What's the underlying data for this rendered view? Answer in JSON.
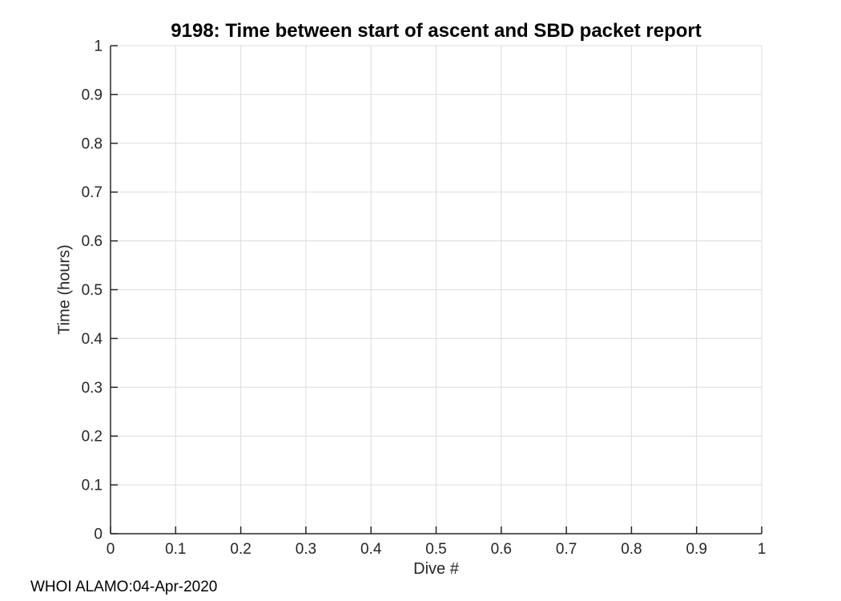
{
  "figure": {
    "background": "#ffffff",
    "annotation": "WHOI ALAMO:04-Apr-2020"
  },
  "chart_data": {
    "type": "line",
    "title": "9198: Time between start of ascent and SBD packet report",
    "xlabel": "Dive #",
    "ylabel": "Time (hours)",
    "xlim": [
      0,
      1
    ],
    "ylim": [
      0,
      1
    ],
    "xticks": {
      "values": [
        0,
        0.1,
        0.2,
        0.3,
        0.4,
        0.5,
        0.6,
        0.7,
        0.8,
        0.9,
        1
      ],
      "labels": [
        "0",
        "0.1",
        "0.2",
        "0.3",
        "0.4",
        "0.5",
        "0.6",
        "0.7",
        "0.8",
        "0.9",
        "1"
      ]
    },
    "yticks": {
      "values": [
        0,
        0.1,
        0.2,
        0.3,
        0.4,
        0.5,
        0.6,
        0.7,
        0.8,
        0.9,
        1
      ],
      "labels": [
        "0",
        "0.1",
        "0.2",
        "0.3",
        "0.4",
        "0.5",
        "0.6",
        "0.7",
        "0.8",
        "0.9",
        "1"
      ]
    },
    "grid": true,
    "legend": null,
    "series": [],
    "colors": {
      "axis": "#262626",
      "grid": "#dcdcdc",
      "tick_text": "#262626",
      "title_text": "#000000",
      "annotation_text": "#000000"
    }
  }
}
